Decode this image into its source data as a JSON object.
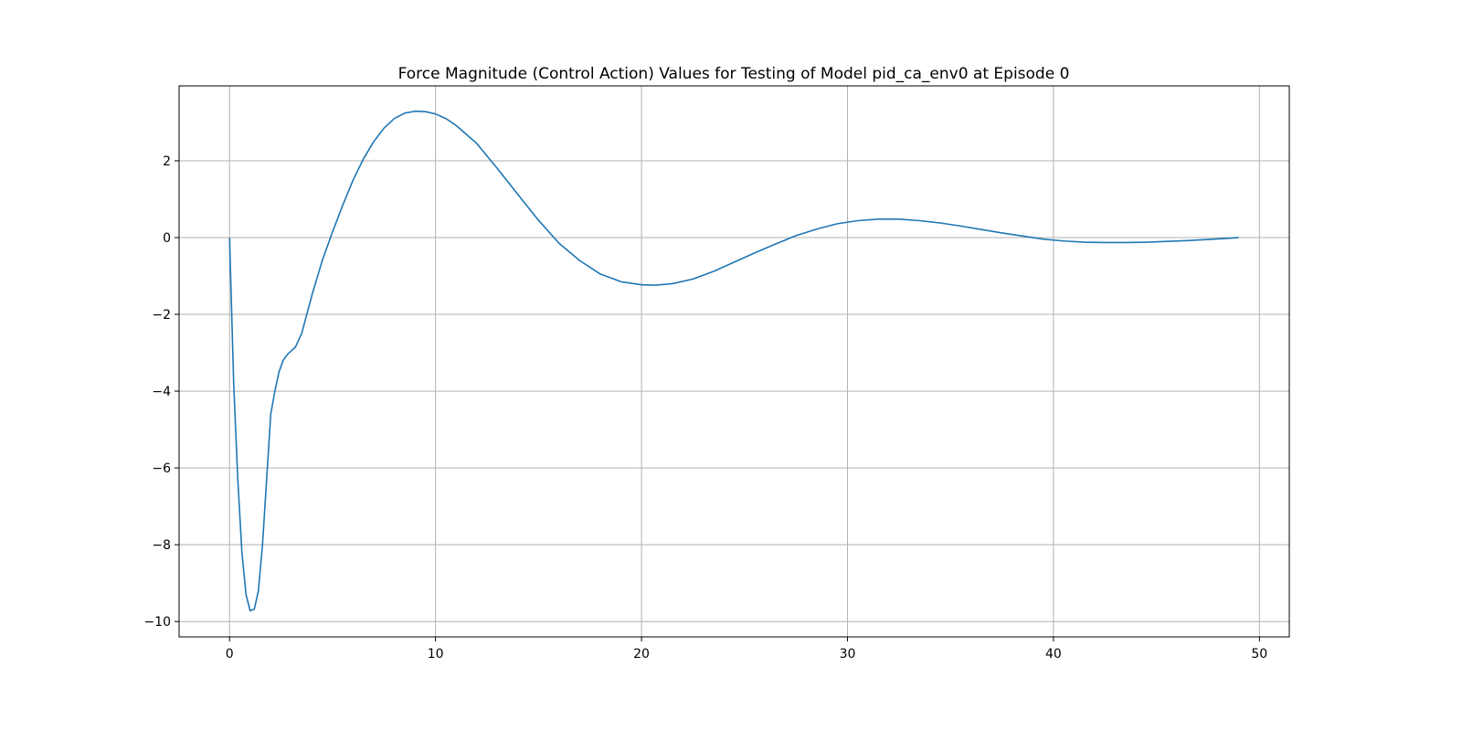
{
  "chart_data": {
    "type": "line",
    "title": "Force Magnitude (Control Action) Values for Testing of Model pid_ca_env0 at Episode 0",
    "xlabel": "",
    "ylabel": "",
    "xlim": [
      -2.45,
      51.45
    ],
    "ylim": [
      -10.4,
      3.95
    ],
    "xticks": [
      0,
      10,
      20,
      30,
      40,
      50
    ],
    "yticks": [
      -10,
      -8,
      -6,
      -4,
      -2,
      0,
      2
    ],
    "grid": true,
    "legend": "none",
    "series": [
      {
        "color": "#1f77b4",
        "x": [
          0,
          0.2,
          0.4,
          0.6,
          0.8,
          1.0,
          1.2,
          1.4,
          1.6,
          1.8,
          2.0,
          2.2,
          2.4,
          2.6,
          2.8,
          3.0,
          3.2,
          3.5,
          4.0,
          4.5,
          5.0,
          5.5,
          6.0,
          6.5,
          7.0,
          7.5,
          8.0,
          8.5,
          9.0,
          9.5,
          10.0,
          10.5,
          11.0,
          12.0,
          13.0,
          14.0,
          15.0,
          16.0,
          17.0,
          18.0,
          19.0,
          20.0,
          20.7,
          21.5,
          22.5,
          23.5,
          24.5,
          25.5,
          26.5,
          27.5,
          28.5,
          29.5,
          30.5,
          31.5,
          32.5,
          33.5,
          34.5,
          35.5,
          36.5,
          37.5,
          38.5,
          39.5,
          40.5,
          41.5,
          42.5,
          43.5,
          44.5,
          45.5,
          46.5,
          47.5,
          48.5,
          49.0
        ],
        "y": [
          0,
          -3.8,
          -6.3,
          -8.2,
          -9.3,
          -9.72,
          -9.68,
          -9.2,
          -8.0,
          -6.3,
          -4.6,
          -4.0,
          -3.5,
          -3.2,
          -3.05,
          -2.95,
          -2.85,
          -2.5,
          -1.5,
          -0.6,
          0.15,
          0.85,
          1.5,
          2.05,
          2.5,
          2.85,
          3.1,
          3.24,
          3.29,
          3.28,
          3.22,
          3.1,
          2.92,
          2.45,
          1.8,
          1.12,
          0.45,
          -0.15,
          -0.6,
          -0.95,
          -1.15,
          -1.23,
          -1.24,
          -1.2,
          -1.08,
          -0.88,
          -0.64,
          -0.4,
          -0.17,
          0.05,
          0.22,
          0.36,
          0.44,
          0.48,
          0.48,
          0.44,
          0.38,
          0.3,
          0.21,
          0.12,
          0.04,
          -0.04,
          -0.09,
          -0.12,
          -0.13,
          -0.13,
          -0.12,
          -0.1,
          -0.08,
          -0.05,
          -0.02,
          0.0
        ]
      }
    ]
  }
}
